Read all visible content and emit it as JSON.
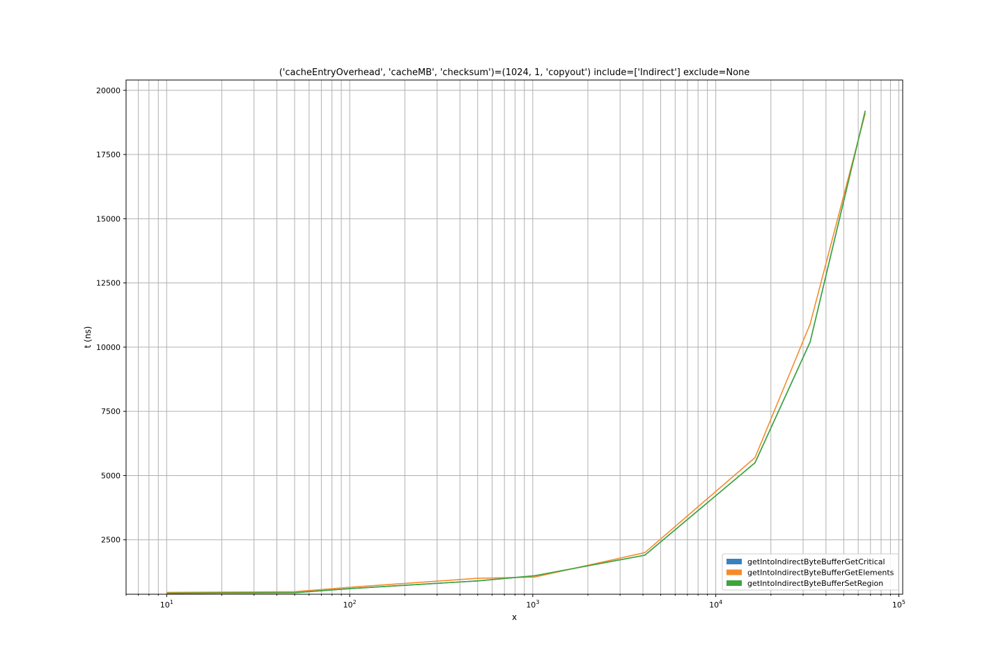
{
  "chart_data": {
    "type": "line",
    "title": "('cacheEntryOverhead', 'cacheMB', 'checksum')=(1024, 1, 'copyout') include=['Indirect'] exclude=None",
    "xlabel": "x",
    "ylabel": "t (ns)",
    "xscale": "log",
    "xlim": [
      6,
      105000
    ],
    "ylim": [
      380,
      20400
    ],
    "x_ticks": [
      {
        "value": 10,
        "base": "10",
        "exp": "1"
      },
      {
        "value": 100,
        "base": "10",
        "exp": "2"
      },
      {
        "value": 1000,
        "base": "10",
        "exp": "3"
      },
      {
        "value": 10000,
        "base": "10",
        "exp": "4"
      },
      {
        "value": 100000,
        "base": "10",
        "exp": "5"
      }
    ],
    "y_ticks": [
      {
        "value": 2500,
        "label": "2500"
      },
      {
        "value": 5000,
        "label": "5000"
      },
      {
        "value": 7500,
        "label": "7500"
      },
      {
        "value": 10000,
        "label": "10000"
      },
      {
        "value": 12500,
        "label": "12500"
      },
      {
        "value": 15000,
        "label": "15000"
      },
      {
        "value": 17500,
        "label": "17500"
      },
      {
        "value": 20000,
        "label": "20000"
      }
    ],
    "grid": true,
    "legend_position": "lower-right",
    "series": [
      {
        "name": "getIntoIndirectByteBufferGetCritical",
        "color": "#3b82bd",
        "x": [
          10,
          50,
          100,
          500,
          1024,
          4096,
          16384,
          32768,
          65536
        ],
        "y": [
          420,
          440,
          600,
          900,
          1100,
          1900,
          5500,
          10200,
          19200
        ]
      },
      {
        "name": "getIntoIndirectByteBufferGetElements",
        "color": "#f58a2c",
        "x": [
          10,
          50,
          100,
          500,
          1024,
          4096,
          16384,
          32768,
          65536
        ],
        "y": [
          450,
          480,
          650,
          1000,
          1050,
          2000,
          5700,
          10900,
          19100
        ]
      },
      {
        "name": "getIntoIndirectByteBufferSetRegion",
        "color": "#3ca53c",
        "x": [
          10,
          50,
          100,
          500,
          1024,
          4096,
          16384,
          32768,
          65536
        ],
        "y": [
          420,
          440,
          600,
          900,
          1100,
          1900,
          5500,
          10200,
          19200
        ]
      }
    ]
  }
}
